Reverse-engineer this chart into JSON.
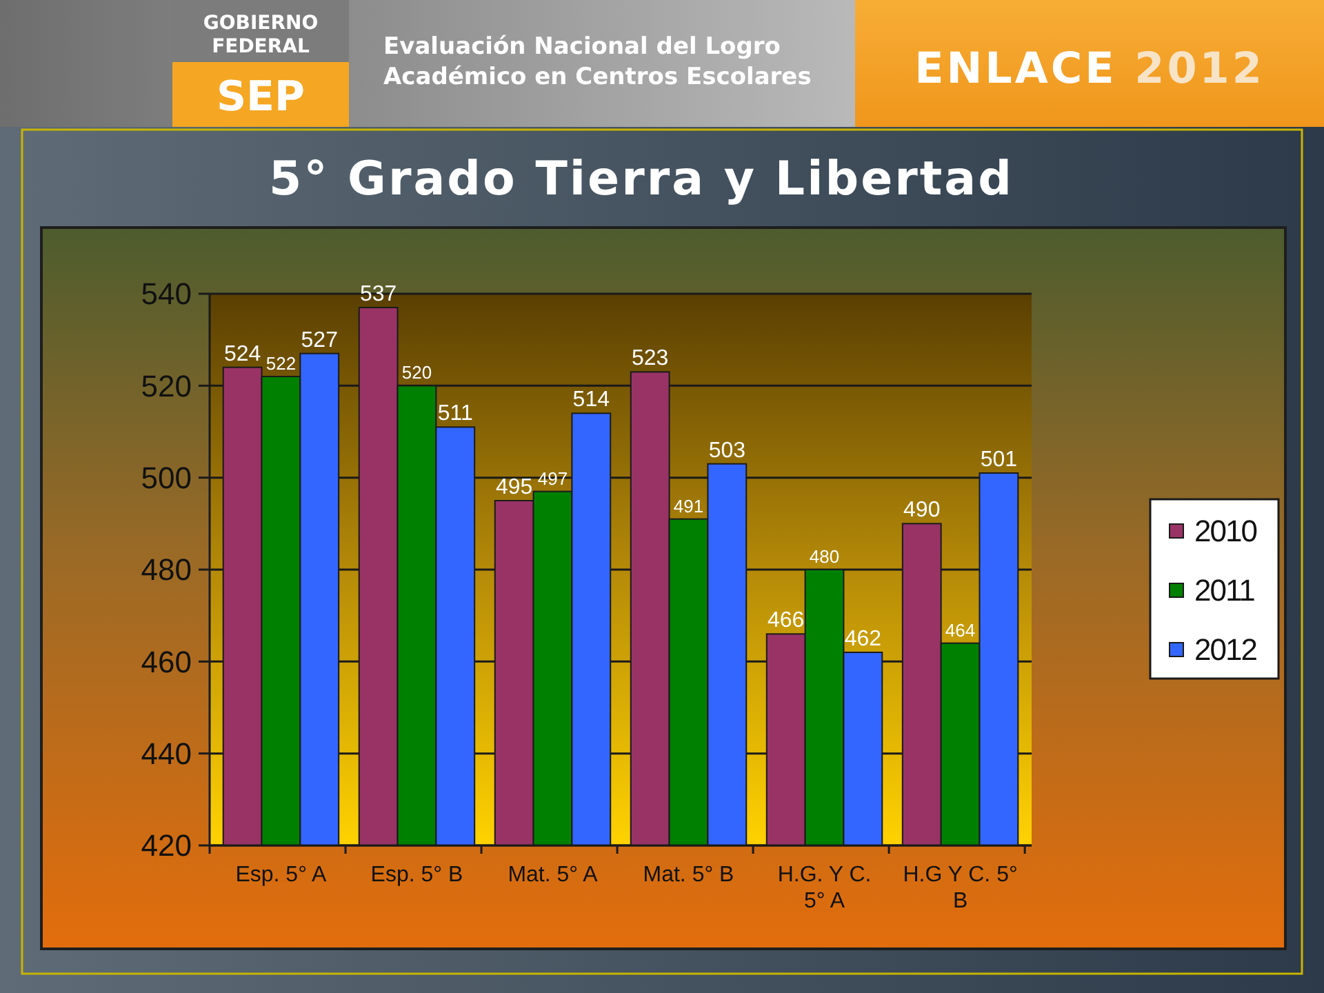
{
  "chart_data": {
    "type": "bar",
    "title": "5° Grado Tierra y Libertad",
    "categories": [
      "Esp. 5° A",
      "Esp. 5° B",
      "Mat. 5° A",
      "Mat. 5° B",
      "H.G. Y C. 5° A",
      "H.G Y C. 5° B"
    ],
    "series": [
      {
        "name": "2010",
        "color": "#993366",
        "values": [
          524,
          537,
          495,
          523,
          466,
          490
        ]
      },
      {
        "name": "2011",
        "color": "#008000",
        "values": [
          522,
          520,
          497,
          491,
          480,
          464
        ]
      },
      {
        "name": "2012",
        "color": "#3366ff",
        "values": [
          527,
          511,
          514,
          503,
          462,
          501
        ]
      }
    ],
    "ylim": [
      420,
      540
    ],
    "yticks": [
      420,
      440,
      460,
      480,
      500,
      520,
      540
    ],
    "grid": "y",
    "legend": "right",
    "data_labels": true,
    "annotations": [
      "GOBIERNO FEDERAL",
      "SEP",
      "Evaluación Nacional del Logro Académico en Centros Escolares",
      "ENLACE 2012"
    ]
  }
}
